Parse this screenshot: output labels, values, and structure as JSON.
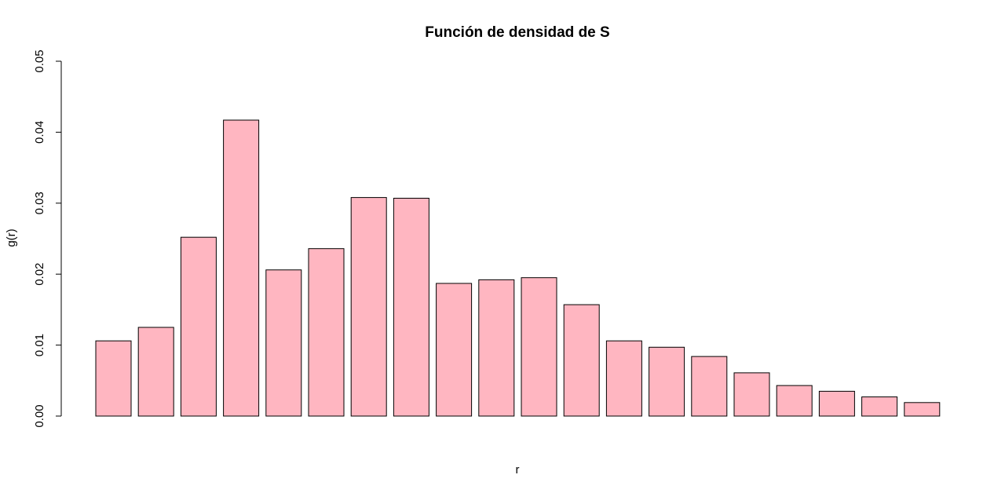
{
  "chart_data": {
    "type": "bar",
    "title": "Función de densidad de S",
    "xlabel": "r",
    "ylabel": "g(r)",
    "ylim": [
      0,
      0.05
    ],
    "yticks": [
      "0.00",
      "0.01",
      "0.02",
      "0.03",
      "0.04",
      "0.05"
    ],
    "values": [
      0.0106,
      0.0125,
      0.0252,
      0.0417,
      0.0206,
      0.0236,
      0.0308,
      0.0307,
      0.0187,
      0.0192,
      0.0195,
      0.0157,
      0.0106,
      0.0097,
      0.0084,
      0.0061,
      0.0043,
      0.0035,
      0.0027,
      0.0019
    ],
    "bar_color": "#FFB6C1",
    "bar_border_color": "#000000",
    "grid": false,
    "legend": "none"
  }
}
